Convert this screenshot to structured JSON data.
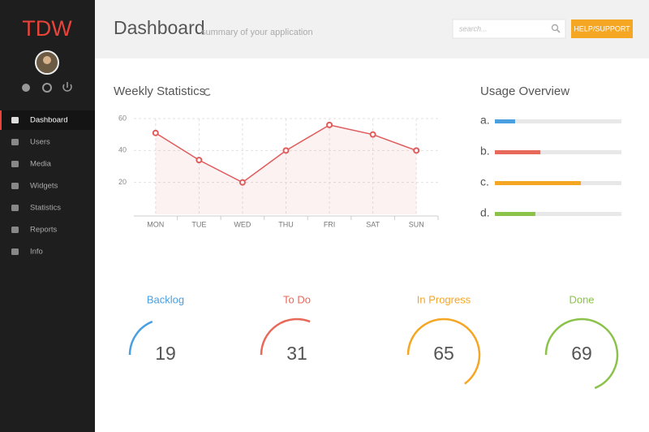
{
  "sidebar": {
    "logo": "TDW",
    "nav": [
      {
        "label": "Dashboard",
        "active": true
      },
      {
        "label": "Users"
      },
      {
        "label": "Media"
      },
      {
        "label": "Widgets"
      },
      {
        "label": "Statistics"
      },
      {
        "label": "Reports"
      },
      {
        "label": "Info"
      }
    ]
  },
  "header": {
    "title": "Dashboard",
    "subtitle": "summary of your application",
    "search_placeholder": "search...",
    "button": "HELP/SUPPORT"
  },
  "chart_data": [
    {
      "type": "line",
      "title": "Weekly Statistics",
      "categories": [
        "MON",
        "TUE",
        "WED",
        "THU",
        "FRI",
        "SAT",
        "SUN"
      ],
      "values": [
        51,
        34,
        20,
        40,
        56,
        50,
        40
      ],
      "color": "#e05a5a",
      "ylim": [
        0,
        60
      ],
      "yticks": [
        20,
        40,
        60
      ],
      "grid": true
    },
    {
      "type": "hbar",
      "title": "Usage Overview",
      "categories": [
        "a.",
        "b.",
        "c.",
        "d."
      ],
      "values": [
        16,
        36,
        68,
        32
      ],
      "colors": [
        "#4a9fe0",
        "#e8685a",
        "#f5a623",
        "#8bc34a"
      ],
      "xlim": [
        0,
        100
      ]
    },
    {
      "type": "gauge",
      "categories": [
        "Backlog",
        "To Do",
        "In Progress",
        "Done"
      ],
      "values": [
        19,
        31,
        65,
        69
      ],
      "colors": [
        "#4a9fe0",
        "#e8685a",
        "#f5a623",
        "#8bc34a"
      ],
      "ylim": [
        0,
        100
      ]
    }
  ]
}
